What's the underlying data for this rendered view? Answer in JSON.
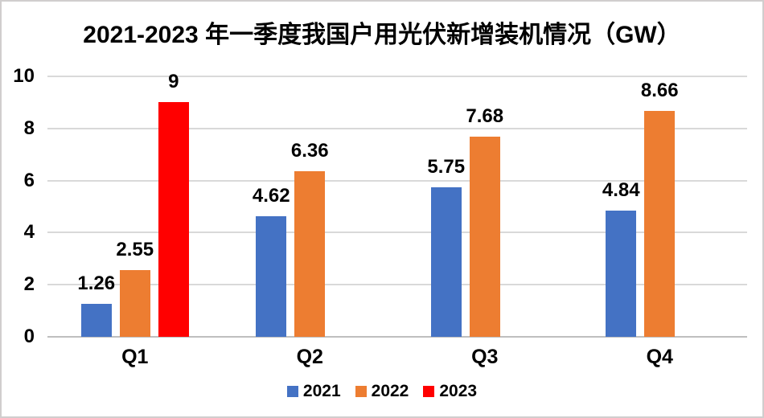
{
  "chart_data": {
    "type": "bar",
    "title": "2021-2023 年一季度我国户用光伏新增装机情况（GW）",
    "categories": [
      "Q1",
      "Q2",
      "Q3",
      "Q4"
    ],
    "series": [
      {
        "name": "2021",
        "color": "#4472C4",
        "values": [
          1.26,
          4.62,
          5.75,
          4.84
        ]
      },
      {
        "name": "2022",
        "color": "#ED7D31",
        "values": [
          2.55,
          6.36,
          7.68,
          8.66
        ]
      },
      {
        "name": "2023",
        "color": "#FF0000",
        "values": [
          9,
          null,
          null,
          null
        ]
      }
    ],
    "ylim": [
      0,
      10
    ],
    "yticks": [
      0,
      2,
      4,
      6,
      8,
      10
    ],
    "xlabel": "",
    "ylabel": "",
    "grid": true,
    "legend_position": "bottom"
  },
  "colors": {
    "gridline": "#D9D9D9",
    "axis_line": "#BFBFBF",
    "text": "#000000",
    "border": "#D0CECE",
    "background": "#FFFFFF"
  }
}
